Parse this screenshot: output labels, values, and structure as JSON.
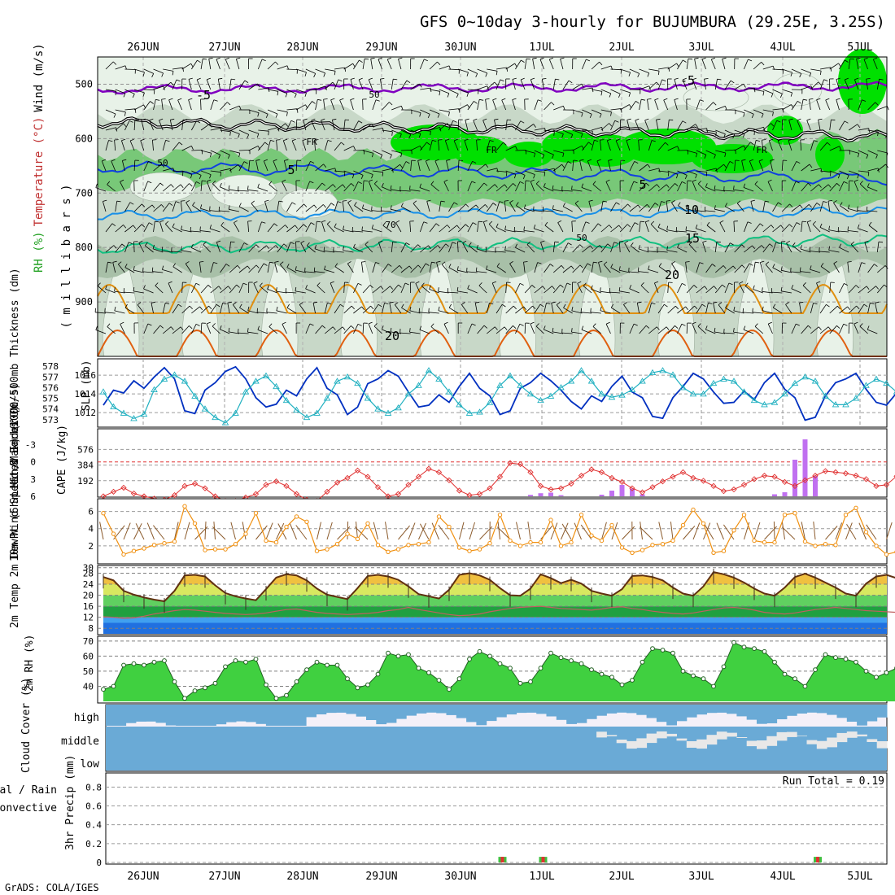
{
  "title": "GFS 0~10day 3-hourly for BUJUMBURA (29.25E, 3.25S)",
  "footer": "GrADS: COLA/IGES",
  "run_total_label": "Run Total = 0.19",
  "date_labels": [
    "26JUN",
    "27JUN",
    "28JUN",
    "29JUN",
    "30JUN",
    "1JUL",
    "2JUL",
    "3JUL",
    "4JUL",
    "5JUL"
  ],
  "colors": {
    "rh_light": "#e8f2e8",
    "rh_mid": "#c6d8c6",
    "rh_dark": "#a8c0a8",
    "rh_green": "#78c878",
    "rh_bright": "#00e000",
    "temp_minus5": "#8000c0",
    "temp_5": "#1040e0",
    "temp_10": "#1890e8",
    "temp_15": "#10c080",
    "temp_20": "#e09010",
    "temp_25": "#e06010",
    "slp": "#0030c0",
    "thickness": "#20b0c0",
    "lifted": "#e03030",
    "cape": "#c070f0",
    "wind10": "#f09010",
    "rh2m": "#40d040",
    "cloud": "#6aaad6",
    "cloud_bg": "#f4f0f8"
  },
  "chart_data": [
    {
      "type": "heatmap",
      "panel": "upper-air",
      "ylabel_parts": [
        "RH (%)",
        "Temperature (°C)",
        "Wind (m/s)"
      ],
      "ylabel_units": "( m i l l i b a r s )",
      "yticks": [
        500,
        600,
        700,
        800,
        900
      ],
      "ylim": [
        1000,
        450
      ],
      "contour_labels": [
        "-5",
        "-5",
        "5",
        "5",
        "10",
        "15",
        "20",
        "20",
        "FR",
        "FR",
        "FR",
        "50",
        "50",
        "50",
        "70"
      ]
    },
    {
      "type": "line",
      "panel": "slp-thickness",
      "ylabel_left": "1000~500mb Thickness (dm)",
      "ylabel_right": "SLP (mb)",
      "left_ticks": [
        573,
        574,
        575,
        576,
        577,
        578
      ],
      "right_ticks": [
        1012,
        1014,
        1016
      ],
      "series": [
        {
          "name": "SLP (mb)",
          "axis": "right",
          "values": [
            1012.8,
            1014.4,
            1014.1,
            1015.4,
            1014.6,
            1015.8,
            1016.8,
            1015.6,
            1012.2,
            1011.9,
            1014.4,
            1015.2,
            1016.4,
            1016.9,
            1015.6,
            1013.6,
            1012.6,
            1012.9,
            1014.4,
            1013.8,
            1015.6,
            1016.8,
            1014.6,
            1013.9,
            1011.8,
            1012.6,
            1015.1,
            1015.6,
            1016.5,
            1015.9,
            1014.2,
            1012.6,
            1012.8,
            1013.9,
            1013.1,
            1014.8,
            1016.2,
            1014.6,
            1013.8,
            1011.8,
            1012.2,
            1014.6,
            1015.2,
            1016.2,
            1015.4,
            1014.4,
            1013.2,
            1012.4,
            1013.8,
            1013.2,
            1014.8,
            1015.9,
            1014.2,
            1013.6,
            1011.6,
            1011.4,
            1013.6,
            1014.8,
            1016.2,
            1015.6,
            1014.2,
            1013.0,
            1013.1,
            1014.3,
            1013.4,
            1015.2,
            1016.2,
            1014.5,
            1013.6,
            1011.2,
            1011.5,
            1013.8,
            1015.2,
            1015.6,
            1016.2,
            1014.5,
            1013.1,
            1012.8,
            1014.1,
            1013.8,
            1014.9
          ]
        },
        {
          "name": "1000~500mb Thickness (dm)",
          "axis": "left",
          "values": [
            575.6,
            574.2,
            573.6,
            573.1,
            573.5,
            575.8,
            576.8,
            577.2,
            576.6,
            575.2,
            574.0,
            573.2,
            572.7,
            573.6,
            575.6,
            576.6,
            577.1,
            576.1,
            574.8,
            573.9,
            573.2,
            573.6,
            575.0,
            576.6,
            577.0,
            576.4,
            575.0,
            574.0,
            573.6,
            574.1,
            575.4,
            576.2,
            577.6,
            576.8,
            575.6,
            574.4,
            573.6,
            573.7,
            574.6,
            576.2,
            577.1,
            576.2,
            575.4,
            574.8,
            575.2,
            576.0,
            576.6,
            577.6,
            576.6,
            575.4,
            575.1,
            575.3,
            575.8,
            576.6,
            577.4,
            577.6,
            577.2,
            576.0,
            575.4,
            575.4,
            576.4,
            576.8,
            576.6,
            575.6,
            574.8,
            574.4,
            574.6,
            575.4,
            576.4,
            577.0,
            576.6,
            575.2,
            574.4,
            574.4,
            575.0,
            576.2,
            576.8,
            576.4,
            575.6,
            575.4,
            575.9
          ]
        }
      ]
    },
    {
      "type": "bar",
      "panel": "lifted-cape",
      "ylabel_left": "Lifted Index",
      "ylabel_right": "CAPE (J/kg)",
      "left_ticks": [
        "-3",
        "0",
        "3",
        "6"
      ],
      "right_ticks": [
        "576",
        "384",
        "192"
      ],
      "series": [
        {
          "name": "Lifted Index",
          "axis": "left",
          "type": "line",
          "values": [
            6.0,
            5.2,
            4.5,
            5.5,
            6.0,
            6.4,
            6.6,
            5.8,
            4.2,
            3.8,
            4.6,
            6.0,
            6.8,
            6.8,
            6.2,
            5.6,
            4.0,
            3.4,
            4.2,
            5.6,
            6.6,
            6.8,
            5.2,
            3.6,
            2.8,
            1.5,
            2.6,
            4.4,
            6.0,
            5.6,
            4.0,
            2.6,
            1.2,
            1.8,
            3.2,
            5.0,
            5.8,
            5.6,
            4.6,
            2.6,
            0.2,
            0.4,
            1.8,
            4.2,
            4.8,
            4.6,
            3.8,
            2.4,
            1.3,
            1.8,
            2.8,
            3.5,
            4.6,
            5.3,
            4.4,
            3.4,
            2.6,
            1.8,
            2.8,
            3.3,
            4.2,
            5.1,
            4.8,
            4.0,
            3.0,
            2.4,
            2.6,
            3.5,
            4.2,
            3.2,
            2.4,
            1.6,
            1.8,
            2.0,
            2.4,
            3.0,
            4.2,
            4.0,
            2.5,
            2.6,
            5.6
          ]
        },
        {
          "name": "CAPE (J/kg)",
          "axis": "right",
          "type": "bar",
          "values": [
            0,
            0,
            0,
            0,
            0,
            0,
            0,
            0,
            0,
            0,
            0,
            0,
            0,
            0,
            0,
            0,
            0,
            0,
            0,
            0,
            0,
            0,
            0,
            0,
            0,
            0,
            0,
            0,
            0,
            0,
            0,
            0,
            0,
            0,
            0,
            0,
            0,
            0,
            0,
            0,
            0,
            0,
            18,
            38,
            45,
            14,
            0,
            0,
            0,
            20,
            70,
            140,
            95,
            25,
            0,
            0,
            0,
            0,
            0,
            0,
            0,
            0,
            0,
            0,
            0,
            0,
            25,
            50,
            450,
            700,
            250,
            0,
            0,
            0,
            0,
            0,
            0,
            0,
            0,
            40,
            60,
            40,
            55,
            40,
            0,
            0,
            0,
            0,
            0,
            0
          ]
        }
      ]
    },
    {
      "type": "line",
      "panel": "wind10m",
      "ylabel": "10m Wind Speed & Barbs (m/s)",
      "yticks": [
        "2",
        "4",
        "6"
      ],
      "values": [
        5.8,
        3.4,
        1.0,
        1.4,
        1.7,
        2.1,
        2.3,
        2.5,
        6.6,
        4.6,
        1.5,
        1.6,
        1.6,
        2.2,
        3.4,
        5.8,
        2.6,
        2.4,
        4.2,
        5.4,
        4.8,
        1.4,
        1.6,
        2.2,
        3.4,
        2.8,
        4.6,
        2.1,
        1.3,
        1.6,
        2.1,
        2.2,
        2.4,
        5.4,
        4.2,
        1.8,
        1.4,
        1.6,
        2.3,
        5.6,
        2.6,
        2.0,
        2.4,
        2.4,
        5.0,
        2.0,
        2.4,
        5.6,
        3.2,
        2.6,
        4.4,
        1.8,
        1.2,
        1.5,
        2.1,
        2.2,
        2.6,
        4.4,
        6.2,
        4.6,
        1.2,
        1.4,
        3.8,
        5.6,
        2.6,
        2.4,
        2.4,
        5.6,
        5.8,
        2.5,
        2.0,
        2.2,
        2.1,
        5.6,
        6.4,
        3.6,
        2.0,
        1.0,
        1.3,
        1.6,
        1.9,
        2.0,
        4.4,
        4.8,
        6.2,
        4.2,
        1.2,
        1.6,
        1.9,
        1.7,
        2.0
      ]
    },
    {
      "type": "area",
      "panel": "temp2m",
      "ylabel": "2m Temp 2m DewPt (6hr Min/Max) (°C)",
      "yticks": [
        "8",
        "12",
        "16",
        "20",
        "24",
        "28",
        "30"
      ],
      "series": [
        {
          "name": "2m Temp",
          "values": [
            26.6,
            25.4,
            21.6,
            20.2,
            19.2,
            18.4,
            17.8,
            21.6,
            27.2,
            27.4,
            26.8,
            23.6,
            20.8,
            19.6,
            18.8,
            18.2,
            22.2,
            26.4,
            27.6,
            27.2,
            25.4,
            22.4,
            20.2,
            19.4,
            18.6,
            22.6,
            27.0,
            27.4,
            26.8,
            25.6,
            23.2,
            20.4,
            19.6,
            18.8,
            22.0,
            27.4,
            28.0,
            27.2,
            25.6,
            22.6,
            20.0,
            19.8,
            22.4,
            27.6,
            26.2,
            24.4,
            25.6,
            24.2,
            21.6,
            20.6,
            19.8,
            22.2,
            27.0,
            27.2,
            26.6,
            25.4,
            22.8,
            20.6,
            19.8,
            23.2,
            28.4,
            27.6,
            26.4,
            24.6,
            22.4,
            20.6,
            19.8,
            22.8,
            26.6,
            27.8,
            26.4,
            24.6,
            22.8,
            20.6,
            19.8,
            24.2,
            26.8,
            27.4,
            26.2,
            24.2,
            21.6,
            20.4,
            20.0,
            24.4
          ]
        },
        {
          "name": "2m DewPt",
          "values": [
            12.2,
            12.0,
            11.6,
            11.8,
            12.4,
            13.2,
            13.8,
            14.4,
            14.8,
            14.6,
            14.2,
            13.8,
            13.4,
            13.2,
            13.0,
            13.2,
            13.6,
            14.2,
            14.8,
            15.0,
            14.4,
            13.8,
            13.4,
            13.2,
            13.0,
            13.2,
            13.4,
            13.8,
            14.4,
            14.8,
            15.6,
            14.8,
            14.2,
            13.6,
            13.0,
            12.6,
            12.8,
            13.2,
            14.0,
            14.6,
            15.2,
            15.6,
            15.8,
            16.0,
            15.6,
            15.2,
            15.0,
            14.8,
            14.6,
            15.0,
            15.6,
            15.8,
            15.2,
            14.8,
            14.2,
            13.8,
            13.4,
            13.2,
            13.6,
            14.2,
            14.8,
            15.4,
            15.6,
            15.2,
            14.6,
            13.8,
            13.4,
            13.2,
            13.6,
            14.2,
            14.8,
            15.2,
            15.6,
            15.2,
            14.8,
            14.4,
            14.2,
            14.0,
            13.8,
            14.0,
            14.2,
            14.4,
            14.6
          ]
        }
      ]
    },
    {
      "type": "area",
      "panel": "rh2m",
      "ylabel": "2m RH (%)",
      "yticks": [
        "40",
        "50",
        "60",
        "70"
      ],
      "values": [
        38,
        40,
        54,
        55,
        54,
        56,
        57,
        43,
        32,
        37,
        39,
        42,
        53,
        57,
        56,
        58,
        41,
        32,
        34,
        43,
        51,
        56,
        54,
        54,
        45,
        39,
        41,
        48,
        62,
        60,
        61,
        52,
        49,
        44,
        38,
        45,
        58,
        63,
        60,
        55,
        52,
        42,
        43,
        52,
        62,
        59,
        57,
        55,
        51,
        48,
        46,
        41,
        44,
        56,
        65,
        64,
        62,
        50,
        47,
        45,
        40,
        53,
        69,
        66,
        65,
        63,
        56,
        48,
        45,
        40,
        51,
        61,
        59,
        58,
        56,
        50,
        46,
        49,
        52,
        60,
        59,
        52,
        49,
        45,
        44,
        40,
        57,
        68,
        64,
        61,
        60,
        48
      ]
    },
    {
      "type": "area",
      "panel": "cloud-cover",
      "ylabel": "Cloud Cover (%)",
      "levels": [
        "high",
        "middle",
        "low"
      ]
    },
    {
      "type": "bar",
      "panel": "precip",
      "ylabel_left": "Total / Rain Convective",
      "ylabel": "3hr Precip (mm)",
      "yticks": [
        "0",
        "0.2",
        "0.4",
        "0.6",
        "0.8"
      ],
      "ylim": [
        0,
        0.95
      ],
      "bars": [
        {
          "time_index": 37,
          "total": 0.06,
          "convective": 0.06
        },
        {
          "time_index": 41,
          "total": 0.06,
          "convective": 0.06
        },
        {
          "time_index": 68,
          "total": 0.06,
          "convective": 0.06
        }
      ]
    }
  ]
}
